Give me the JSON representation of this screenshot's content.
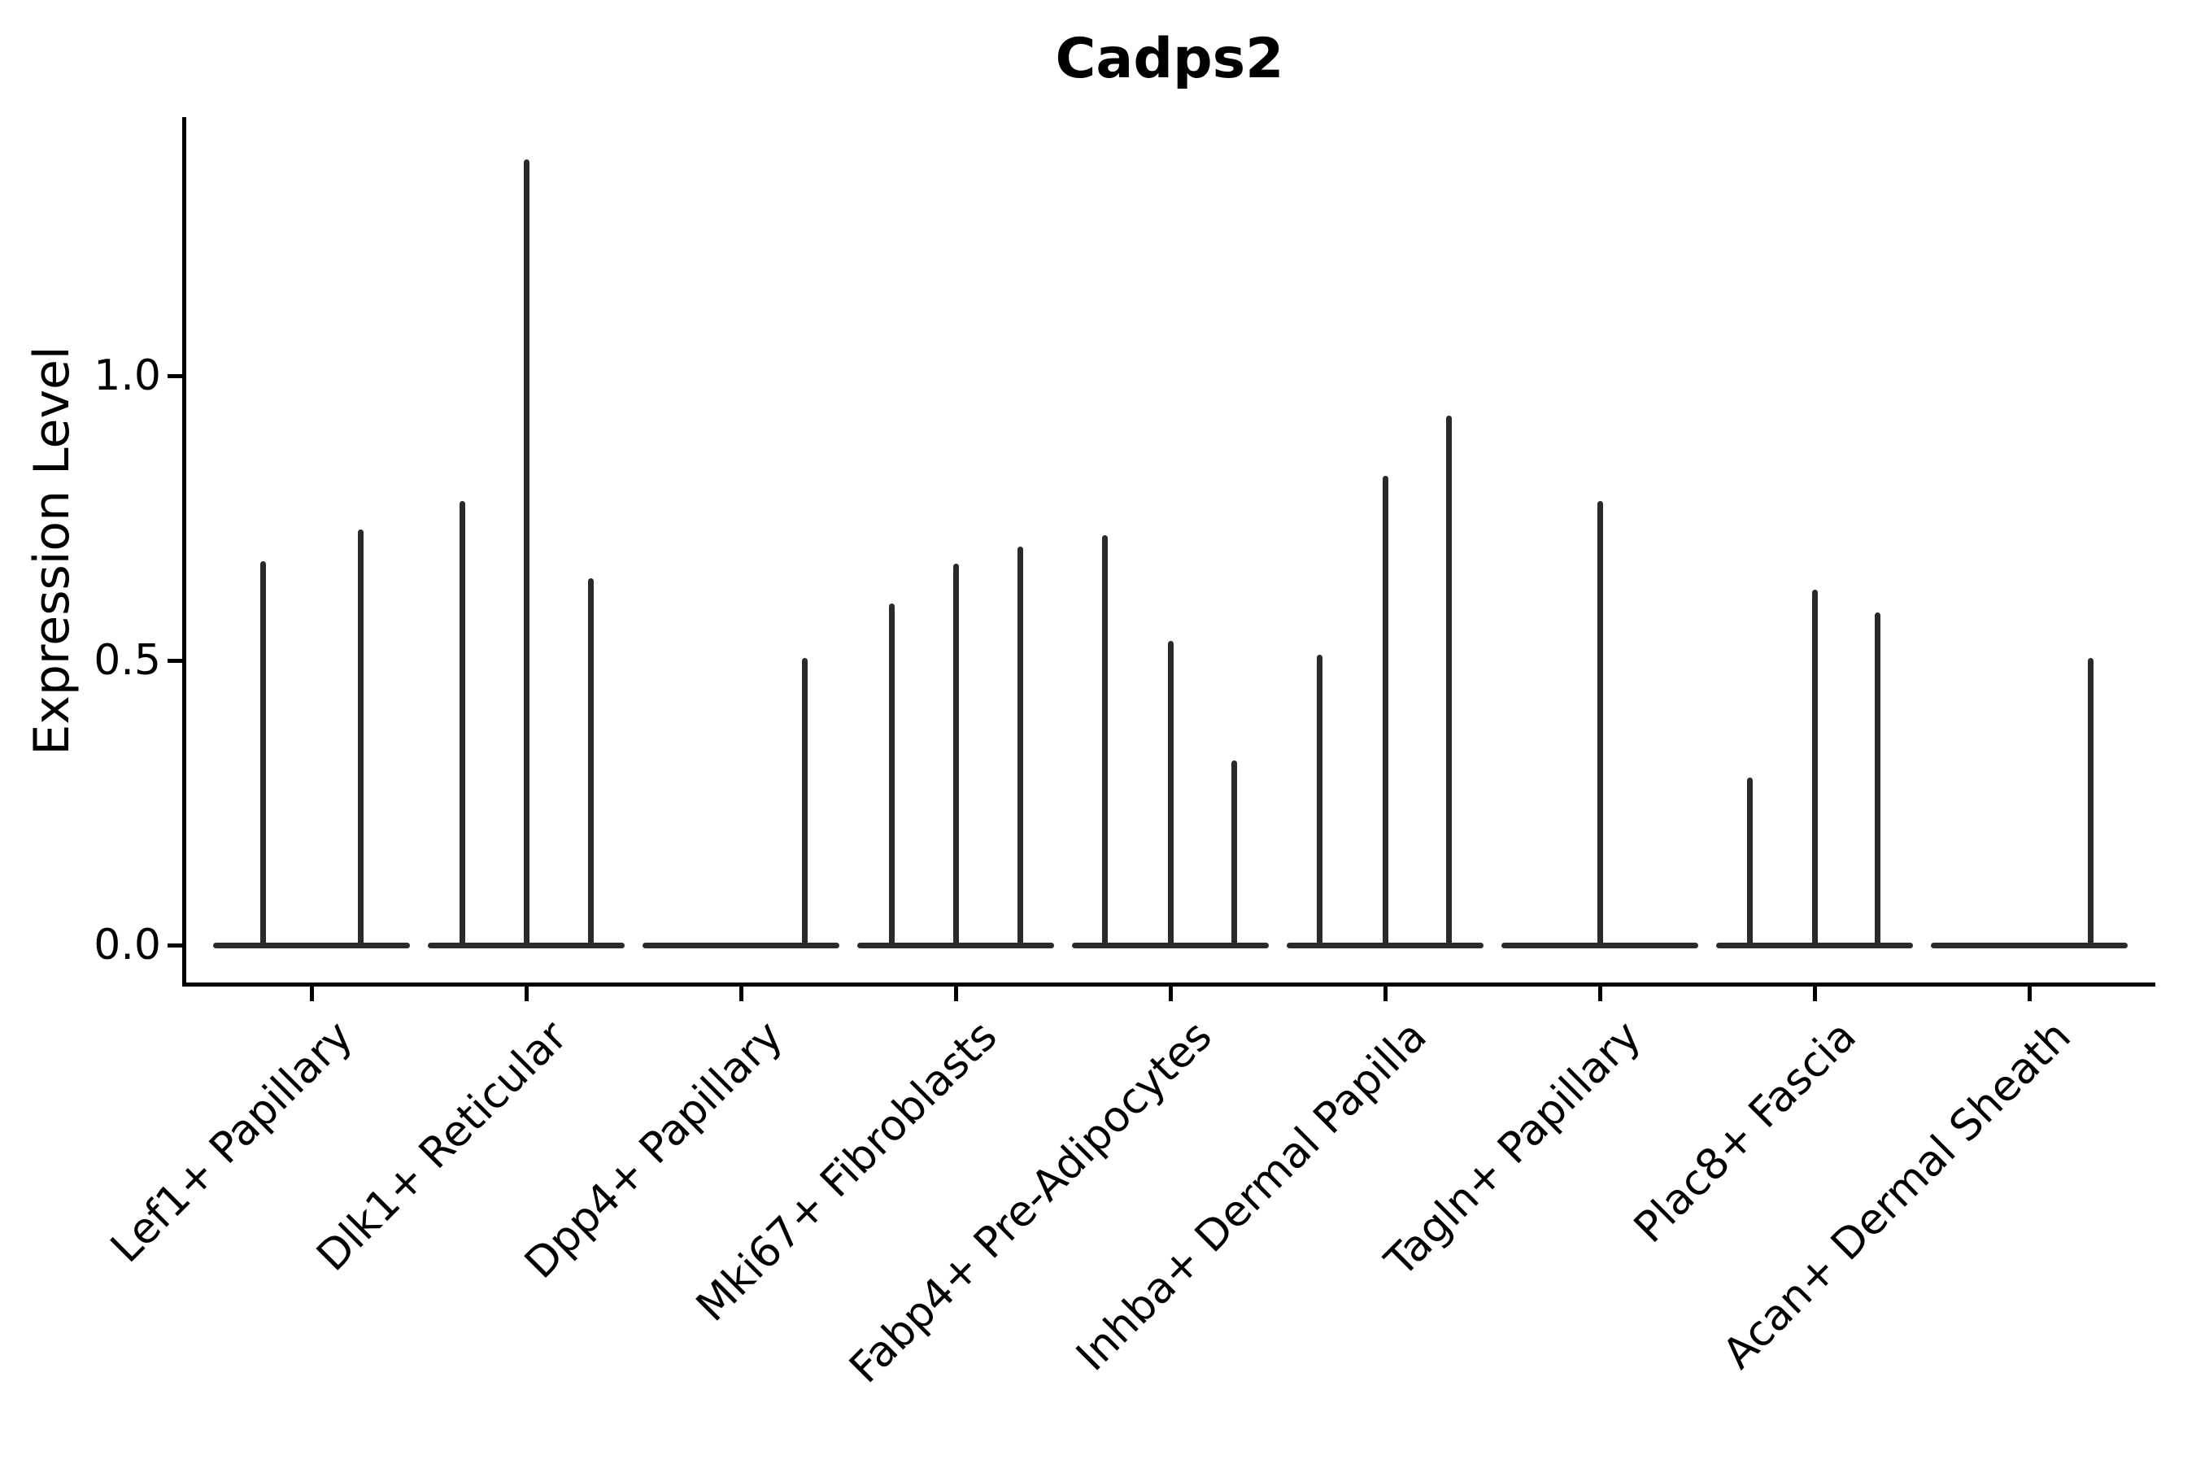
{
  "title": "Cadps2",
  "ylabel": "Expression Level",
  "chart_data": {
    "type": "violin",
    "title": "Cadps2",
    "xlabel": "",
    "ylabel": "Expression Level",
    "ylim": [
      0,
      1.45
    ],
    "yticks": [
      {
        "label": "0.0",
        "value": 0.0
      },
      {
        "label": "0.5",
        "value": 0.5
      },
      {
        "label": "1.0",
        "value": 1.0
      }
    ],
    "grid": false,
    "legend": "none",
    "violin_color": "#2a2a2a",
    "note": "Sparse expression: each violin collapses to a flat base at 0 with a thin spike up to its maximum expression value. Categories contain up to 3 side-by-side violins; spike_offsets_px give horizontal position of each spike relative to the category center.",
    "categories": [
      "Lef1+ Papillary",
      "Dlk1+ Reticular",
      "Dpp4+ Papillary",
      "Mki67+ Fibroblasts",
      "Fabp4+ Pre-Adipocytes",
      "Inhba+ Dermal Papilla",
      "Tagln+ Papillary",
      "Plac8+ Fascia",
      "Acan+ Dermal Sheath"
    ],
    "series": [
      {
        "category": "Lef1+ Papillary",
        "violins": [
          {
            "offset": -60,
            "max": 0.675
          },
          {
            "offset": 60,
            "max": 0.73
          }
        ]
      },
      {
        "category": "Dlk1+ Reticular",
        "violins": [
          {
            "offset": -79,
            "max": 0.78
          },
          {
            "offset": 0,
            "max": 1.38
          },
          {
            "offset": 79,
            "max": 0.645
          }
        ]
      },
      {
        "category": "Dpp4+ Papillary",
        "violins": [
          {
            "offset": 78,
            "max": 0.505
          }
        ]
      },
      {
        "category": "Mki67+ Fibroblasts",
        "violins": [
          {
            "offset": -79,
            "max": 0.6
          },
          {
            "offset": 0,
            "max": 0.67
          },
          {
            "offset": 79,
            "max": 0.7
          }
        ]
      },
      {
        "category": "Fabp4+ Pre-Adipocytes",
        "violins": [
          {
            "offset": -81,
            "max": 0.72
          },
          {
            "offset": 0,
            "max": 0.535
          },
          {
            "offset": 78,
            "max": 0.325
          }
        ]
      },
      {
        "category": "Inhba+ Dermal Papilla",
        "violins": [
          {
            "offset": -81,
            "max": 0.51
          },
          {
            "offset": 0,
            "max": 0.825
          },
          {
            "offset": 78,
            "max": 0.93
          }
        ]
      },
      {
        "category": "Tagln+ Papillary",
        "violins": [
          {
            "offset": 0,
            "max": 0.78
          }
        ]
      },
      {
        "category": "Plac8+ Fascia",
        "violins": [
          {
            "offset": -80,
            "max": 0.295
          },
          {
            "offset": 0,
            "max": 0.625
          },
          {
            "offset": 77,
            "max": 0.585
          }
        ]
      },
      {
        "category": "Acan+ Dermal Sheath",
        "violins": [
          {
            "offset": 75,
            "max": 0.505
          }
        ]
      }
    ]
  }
}
